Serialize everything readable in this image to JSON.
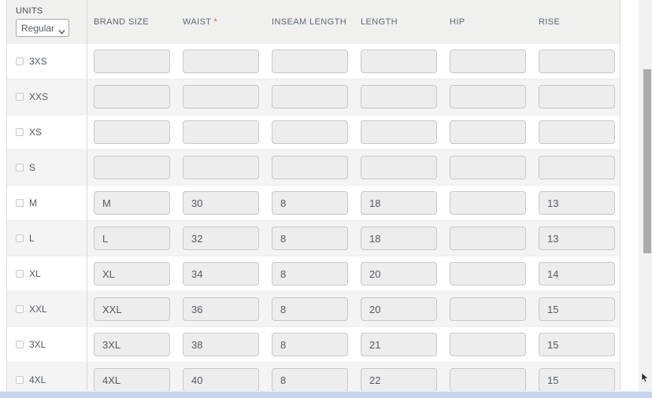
{
  "units": {
    "label": "UNITS",
    "selected": "Regular"
  },
  "table": {
    "required_marker": "*",
    "columns": [
      {
        "label": "BRAND SIZE",
        "required": false
      },
      {
        "label": "WAIST",
        "required": true
      },
      {
        "label": "INSEAM LENGTH",
        "required": false
      },
      {
        "label": "LENGTH",
        "required": false
      },
      {
        "label": "HIP",
        "required": false
      },
      {
        "label": "RISE",
        "required": false
      }
    ],
    "rows": [
      {
        "size": "3XS",
        "checked": false,
        "values": [
          "",
          "",
          "",
          "",
          "",
          ""
        ]
      },
      {
        "size": "XXS",
        "checked": false,
        "values": [
          "",
          "",
          "",
          "",
          "",
          ""
        ]
      },
      {
        "size": "XS",
        "checked": false,
        "values": [
          "",
          "",
          "",
          "",
          "",
          ""
        ]
      },
      {
        "size": "S",
        "checked": false,
        "values": [
          "",
          "",
          "",
          "",
          "",
          ""
        ]
      },
      {
        "size": "M",
        "checked": false,
        "values": [
          "M",
          "30",
          "8",
          "18",
          "",
          "13"
        ]
      },
      {
        "size": "L",
        "checked": false,
        "values": [
          "L",
          "32",
          "8",
          "18",
          "",
          "13"
        ]
      },
      {
        "size": "XL",
        "checked": false,
        "values": [
          "XL",
          "34",
          "8",
          "20",
          "",
          "14"
        ]
      },
      {
        "size": "XXL",
        "checked": false,
        "values": [
          "XXL",
          "36",
          "8",
          "20",
          "",
          "15"
        ]
      },
      {
        "size": "3XL",
        "checked": false,
        "values": [
          "3XL",
          "38",
          "8",
          "21",
          "",
          "15"
        ]
      },
      {
        "size": "4XL",
        "checked": false,
        "values": [
          "4XL",
          "40",
          "8",
          "22",
          "",
          "15"
        ]
      }
    ]
  },
  "colors": {
    "required_asterisk": "#e04f4f",
    "header_bg": "#f0f0ef",
    "alt_row_bg": "#f4f4f4",
    "input_bg": "#ededed",
    "horizontal_scrollbar": "#c8d4ee",
    "scrollbar_thumb": "#ababab"
  }
}
